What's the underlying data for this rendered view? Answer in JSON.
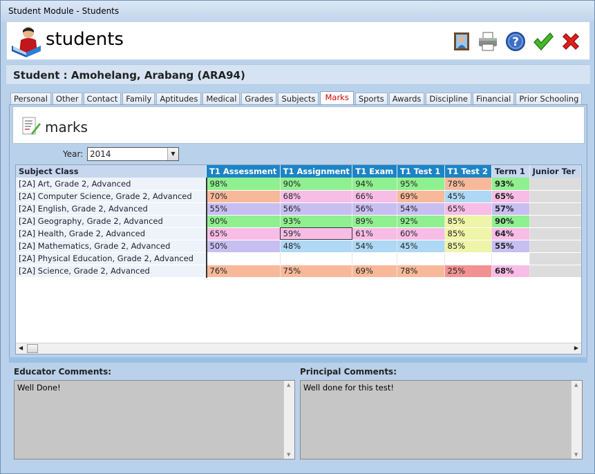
{
  "window": {
    "title": "Student Module - Students"
  },
  "header": {
    "app_title": "students"
  },
  "toolbar": [
    {
      "name": "photo-icon"
    },
    {
      "name": "print-icon"
    },
    {
      "name": "help-icon"
    },
    {
      "name": "accept-icon"
    },
    {
      "name": "cancel-icon"
    }
  ],
  "student": {
    "label": "Student : Amohelang, Arabang (ARA94)"
  },
  "tabs": [
    "Personal",
    "Other",
    "Contact",
    "Family",
    "Aptitudes",
    "Medical",
    "Grades",
    "Subjects",
    "Marks",
    "Sports",
    "Awards",
    "Discipline",
    "Financial",
    "Prior Schooling"
  ],
  "active_tab": "Marks",
  "marks_panel": {
    "title": "marks"
  },
  "year": {
    "label": "Year:",
    "value": "2014"
  },
  "grid": {
    "columns": [
      "Subject Class",
      "T1 Assessment",
      "T1 Assignment",
      "T1 Exam",
      "T1 Test 1",
      "T1 Test 2",
      "Term 1",
      "Junior Ter"
    ],
    "rows": [
      {
        "subject": "[2A] Art, Grade 2, Advanced",
        "marks": [
          "98%",
          "90%",
          "94%",
          "95%",
          "78%",
          "93%"
        ]
      },
      {
        "subject": "[2A] Computer Science, Grade 2, Advanced",
        "marks": [
          "70%",
          "68%",
          "66%",
          "69%",
          "45%",
          "65%"
        ]
      },
      {
        "subject": "[2A] English, Grade 2, Advanced",
        "marks": [
          "55%",
          "56%",
          "56%",
          "54%",
          "65%",
          "57%"
        ]
      },
      {
        "subject": "[2A] Geography, Grade 2, Advanced",
        "marks": [
          "90%",
          "93%",
          "89%",
          "92%",
          "85%",
          "90%"
        ]
      },
      {
        "subject": "[2A] Health, Grade 2, Advanced",
        "marks": [
          "65%",
          "59%",
          "61%",
          "60%",
          "85%",
          "64%"
        ]
      },
      {
        "subject": "[2A] Mathematics, Grade 2, Advanced",
        "marks": [
          "50%",
          "48%",
          "54%",
          "45%",
          "85%",
          "55%"
        ]
      },
      {
        "subject": "[2A] Physical Education, Grade 2, Advanced",
        "marks": [
          "",
          "",
          "",
          "",
          "",
          ""
        ]
      },
      {
        "subject": "[2A] Science, Grade 2, Advanced",
        "marks": [
          "76%",
          "75%",
          "69%",
          "78%",
          "25%",
          "68%"
        ]
      }
    ],
    "colors": {
      "green": "#8ff08f",
      "pink": "#f7bde6",
      "salmon": "#f7b99a",
      "lavender": "#c7bff2",
      "blue": "#aed8f5",
      "yellow": "#eef5a8",
      "red": "#f29191",
      "empty": "#ffffff"
    },
    "cell_colors": [
      [
        "green",
        "green",
        "green",
        "green",
        "salmon",
        "green"
      ],
      [
        "salmon",
        "pink",
        "pink",
        "salmon",
        "blue",
        "pink"
      ],
      [
        "lavender",
        "lavender",
        "lavender",
        "lavender",
        "pink",
        "lavender"
      ],
      [
        "green",
        "green",
        "green",
        "green",
        "yellow",
        "green"
      ],
      [
        "pink",
        "pink",
        "pink",
        "pink",
        "yellow",
        "pink"
      ],
      [
        "lavender",
        "blue",
        "blue",
        "blue",
        "yellow",
        "lavender"
      ],
      [
        "empty",
        "empty",
        "empty",
        "empty",
        "empty",
        "empty"
      ],
      [
        "salmon",
        "salmon",
        "salmon",
        "salmon",
        "red",
        "pink"
      ]
    ]
  },
  "comments": {
    "educator": {
      "label": "Educator Comments:",
      "text": "Well Done!"
    },
    "principal": {
      "label": "Principal Comments:",
      "text": "Well done for this test!"
    }
  }
}
